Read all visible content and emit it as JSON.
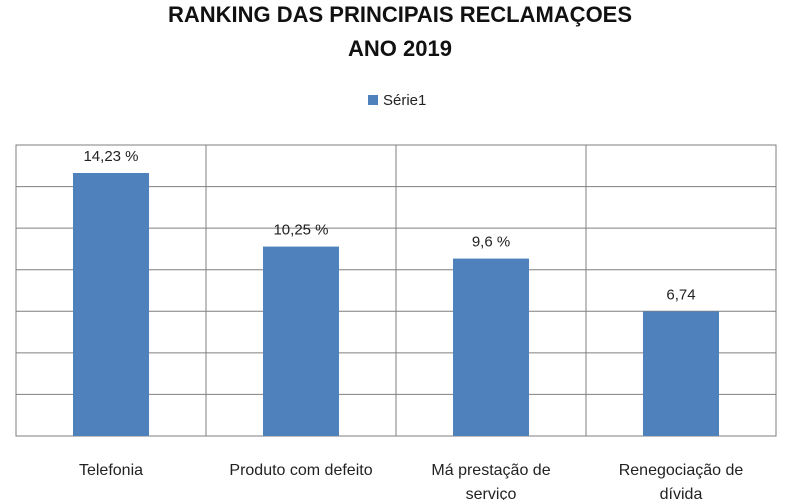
{
  "chart_data": {
    "type": "bar",
    "title_line1": "RANKING DAS PRINCIPAIS RECLAMAÇOES",
    "title_line2": "ANO 2019",
    "categories": [
      "Telefonia",
      "Produto com defeito",
      "Má prestação de serviço",
      "Renegociação de dívida"
    ],
    "category_lines": [
      [
        "Telefonia"
      ],
      [
        "Produto com defeito"
      ],
      [
        "Má prestação de",
        "serviço"
      ],
      [
        "Renegociação de",
        "dívida"
      ]
    ],
    "series": [
      {
        "name": "Série1",
        "values": [
          14.23,
          10.25,
          9.6,
          6.74
        ],
        "data_labels": [
          "14,23 %",
          "10,25 %",
          "9,6 %",
          "6,74"
        ],
        "color": "#4F81BD"
      }
    ],
    "ylim": [
      0,
      14.23
    ],
    "grid": true,
    "legend_position": "top",
    "xlabel": "",
    "ylabel": ""
  }
}
